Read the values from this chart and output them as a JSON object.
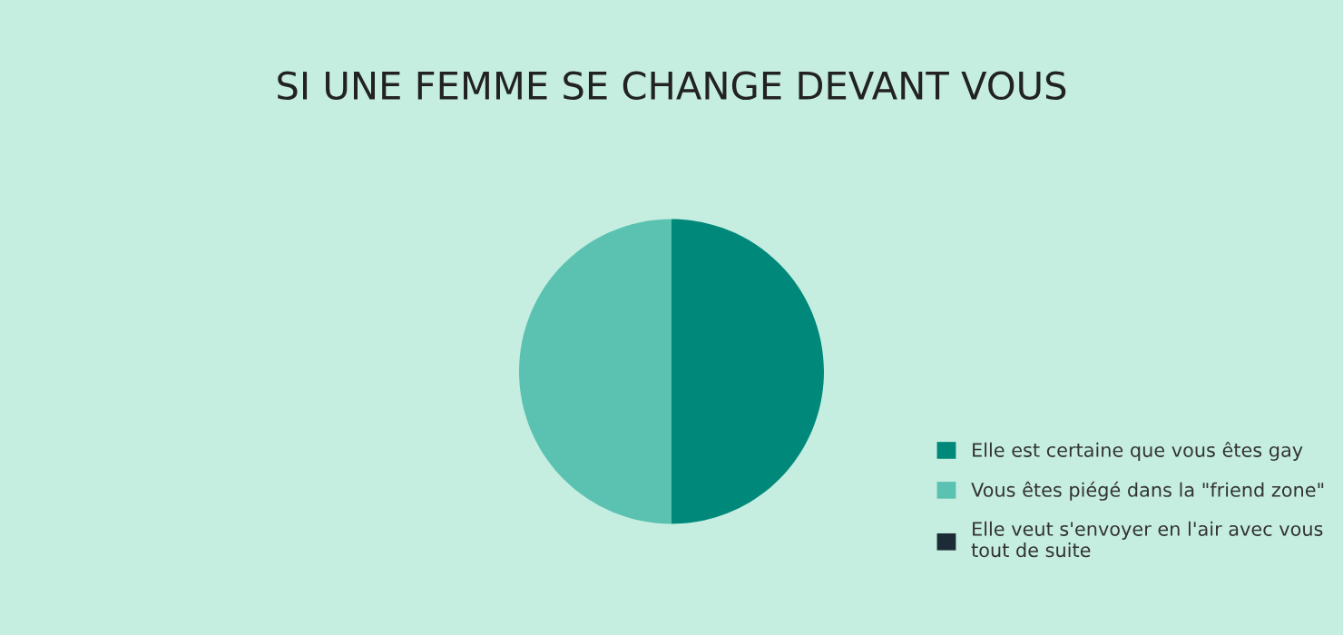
{
  "chart_data": {
    "type": "pie",
    "title": "SI UNE FEMME SE CHANGE DEVANT VOUS",
    "categories": [
      "Elle est certaine que vous êtes gay",
      "Vous êtes piégé dans la \"friend zone\"",
      "Elle veut s'envoyer en l'air avec vous tout de suite"
    ],
    "values": [
      50,
      50,
      0
    ],
    "colors": [
      "#00897a",
      "#5bc2b2",
      "#1d2b36"
    ],
    "legend": "bottom right"
  }
}
